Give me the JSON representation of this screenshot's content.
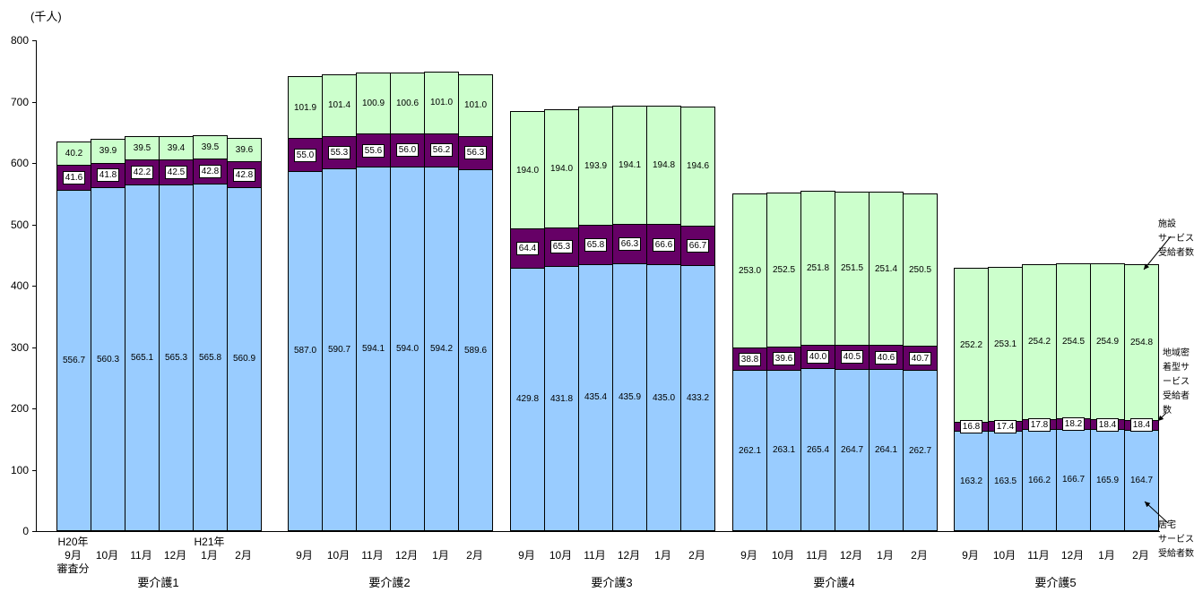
{
  "chart_data": {
    "type": "bar",
    "stacked": true,
    "title": "",
    "unit_label": "(千人)",
    "ylim": [
      0,
      800
    ],
    "yticks": [
      0,
      100,
      200,
      300,
      400,
      500,
      600,
      700,
      800
    ],
    "grid": false,
    "months": [
      "9月",
      "10月",
      "11月",
      "12月",
      "1月",
      "2月"
    ],
    "x_annotations": {
      "start_era": "H20年",
      "start_note": "審査分",
      "new_year_era": "H21年"
    },
    "series_meta": {
      "home": {
        "name": "居宅サービス受給者数",
        "color": "#99CCFF",
        "annotation": "居宅\nサービス\n受給者数"
      },
      "community": {
        "name": "地域密着型サービス受給者数",
        "color": "#660066",
        "annotation": "地域密\n着型サ\nービス\n受給者\n数"
      },
      "facility": {
        "name": "施設サービス受給者数",
        "color": "#CCFFCC",
        "annotation": "施設\nサービス\n受給者数"
      }
    },
    "stack_order_bottom_to_top": [
      "home",
      "community",
      "facility"
    ],
    "groups": [
      {
        "label": "要介護1",
        "home": [
          556.7,
          560.3,
          565.1,
          565.3,
          565.8,
          560.9
        ],
        "community": [
          41.6,
          41.8,
          42.2,
          42.5,
          42.8,
          42.8
        ],
        "facility": [
          40.2,
          39.9,
          39.5,
          39.4,
          39.5,
          39.6
        ]
      },
      {
        "label": "要介護2",
        "home": [
          587.0,
          590.7,
          594.1,
          594.0,
          594.2,
          589.6
        ],
        "community": [
          55.0,
          55.3,
          55.6,
          56.0,
          56.2,
          56.3
        ],
        "facility": [
          101.9,
          101.4,
          100.9,
          100.6,
          101.0,
          101.0
        ]
      },
      {
        "label": "要介護3",
        "home": [
          429.8,
          431.8,
          435.4,
          435.9,
          435.0,
          433.2
        ],
        "community": [
          64.4,
          65.3,
          65.8,
          66.3,
          66.6,
          66.7
        ],
        "facility": [
          194.0,
          194.0,
          193.9,
          194.1,
          194.8,
          194.6
        ]
      },
      {
        "label": "要介護4",
        "home": [
          262.1,
          263.1,
          265.4,
          264.7,
          264.1,
          262.7
        ],
        "community": [
          38.8,
          39.6,
          40.0,
          40.5,
          40.6,
          40.7
        ],
        "facility": [
          253.0,
          252.5,
          251.8,
          251.5,
          251.4,
          250.5
        ]
      },
      {
        "label": "要介護5",
        "home": [
          163.2,
          163.5,
          166.2,
          166.7,
          165.9,
          164.7
        ],
        "community": [
          16.8,
          17.4,
          17.8,
          18.2,
          18.4,
          18.4
        ],
        "facility": [
          252.2,
          253.1,
          254.2,
          254.5,
          254.9,
          254.8
        ]
      }
    ]
  }
}
